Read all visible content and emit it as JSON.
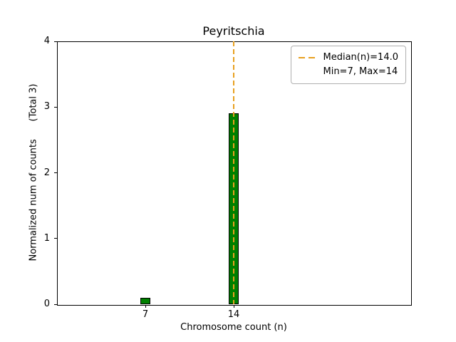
{
  "chart_data": {
    "type": "bar",
    "title": "Peyritschia",
    "xlabel": "Chromosome count (n)",
    "ylabel": "Normalized num of counts      (Total 3)",
    "categories": [
      7,
      14
    ],
    "values": [
      0.1,
      2.9
    ],
    "total_counts": 3,
    "xlim": [
      0,
      28
    ],
    "ylim": [
      0,
      4
    ],
    "xticks": [
      7,
      14
    ],
    "yticks": [
      0,
      1,
      2,
      3,
      4
    ],
    "grid": false,
    "bar_width": 0.8,
    "bar_color": "#008000",
    "bar_edge_color": "#000000",
    "median_line": {
      "x": 14,
      "color": "#e8a020",
      "style": "dashed"
    },
    "stats": {
      "median": 14.0,
      "min": 7,
      "max": 14
    },
    "legend_position": "upper right",
    "legend": [
      {
        "label": "Median(n)=14.0",
        "sample": "dashed-line"
      },
      {
        "label": "Min=7, Max=14",
        "sample": "none"
      }
    ]
  }
}
